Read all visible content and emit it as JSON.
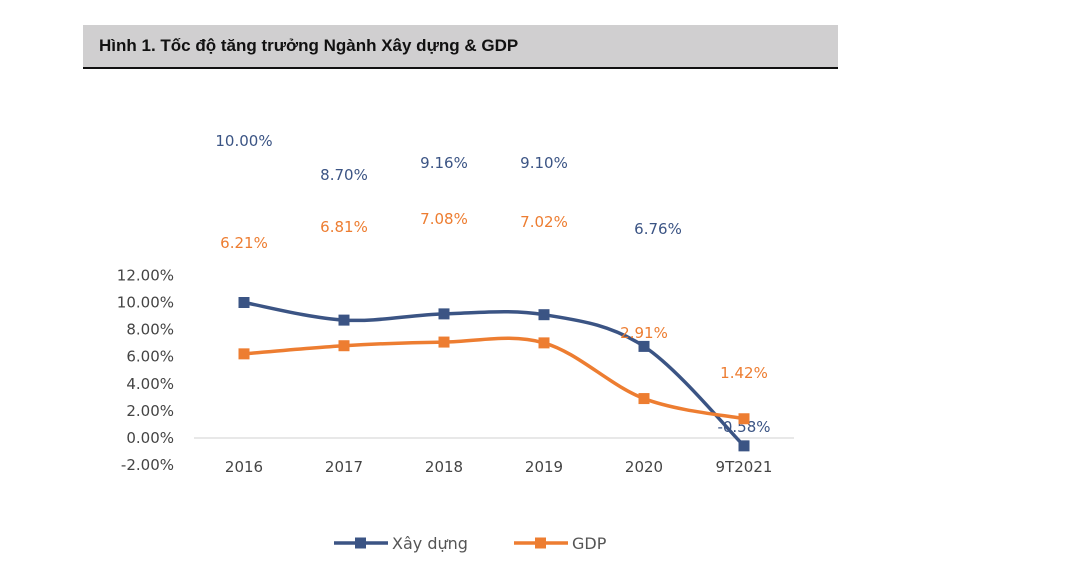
{
  "chart_data": {
    "type": "line",
    "title": "Hình 1. Tốc độ tăng trưởng Ngành Xây dựng & GDP",
    "categories": [
      "2016",
      "2017",
      "2018",
      "2019",
      "2020",
      "9T2021"
    ],
    "ylim": [
      -2,
      12
    ],
    "yticks": [
      "12.00%",
      "10.00%",
      "8.00%",
      "6.00%",
      "4.00%",
      "2.00%",
      "0.00%",
      "-2.00%"
    ],
    "ytick_values": [
      12,
      10,
      8,
      6,
      4,
      2,
      0,
      -2
    ],
    "grid": false,
    "legend": "bottom",
    "smooth": true,
    "series": [
      {
        "name": "Xây dựng",
        "color": "#3b5484",
        "values": [
          10.0,
          8.7,
          9.16,
          9.1,
          6.76,
          -0.58
        ],
        "labels": [
          "10.00%",
          "8.70%",
          "9.16%",
          "9.10%",
          "6.76%",
          "-0.58%"
        ]
      },
      {
        "name": "GDP",
        "color": "#ed7d31",
        "values": [
          6.21,
          6.81,
          7.08,
          7.02,
          2.91,
          1.42
        ],
        "labels": [
          "6.21%",
          "6.81%",
          "7.08%",
          "7.02%",
          "2.91%",
          "1.42%"
        ]
      }
    ]
  }
}
